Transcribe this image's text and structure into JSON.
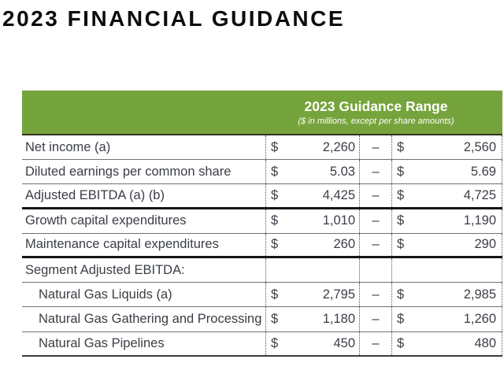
{
  "page_title": "2023 FINANCIAL GUIDANCE",
  "table": {
    "header_title": "2023 Guidance Range",
    "header_subtitle": "($ in millions, except per share amounts)",
    "currency_symbol": "$",
    "range_separator": "–",
    "colors": {
      "header_green": "#76A43C",
      "header_text": "#FFFFFF",
      "body_text": "#3A3E45"
    },
    "rows": [
      {
        "label": "Net income (a)",
        "low": "2,260",
        "high": "2,560"
      },
      {
        "label": "Diluted earnings per common share",
        "low": "5.03",
        "high": "5.69"
      },
      {
        "label": "Adjusted EBITDA (a) (b)",
        "low": "4,425",
        "high": "4,725",
        "thick_after": true
      },
      {
        "label": "Growth capital expenditures",
        "low": "1,010",
        "high": "1,190"
      },
      {
        "label": "Maintenance capital expenditures",
        "low": "260",
        "high": "290",
        "thick_after": true
      },
      {
        "label": "Segment Adjusted EBITDA:",
        "section": true
      },
      {
        "label": "Natural Gas Liquids (a)",
        "low": "2,795",
        "high": "2,985",
        "indent": true
      },
      {
        "label": "Natural Gas Gathering and Processing",
        "low": "1,180",
        "high": "1,260",
        "indent": true
      },
      {
        "label": "Natural Gas Pipelines",
        "low": "450",
        "high": "480",
        "indent": true
      }
    ]
  }
}
